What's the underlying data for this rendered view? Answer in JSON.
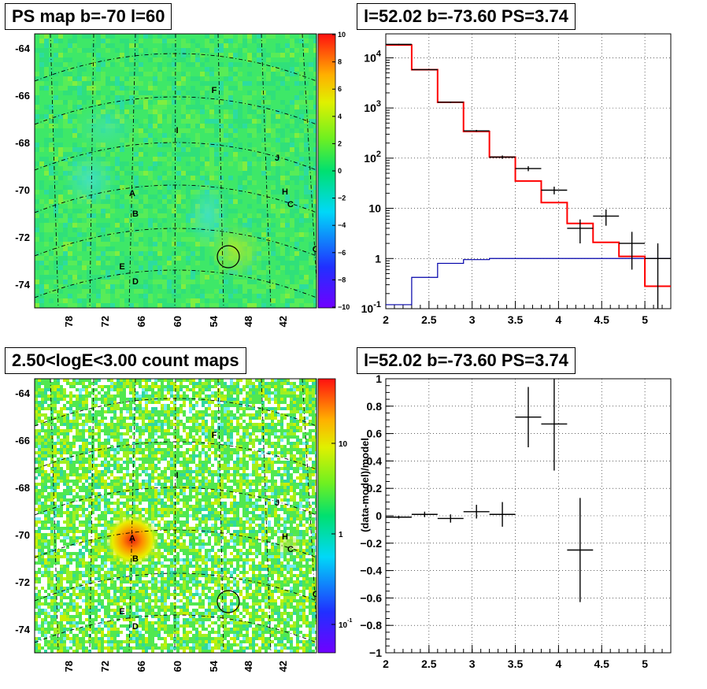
{
  "titles": {
    "tl": "PS map b=-70 l=60",
    "tr": "l=52.02 b=-73.60 PS=3.74",
    "bl": "2.50<logE<3.00 count maps",
    "br": "l=52.02 b=-73.60 PS=3.74"
  },
  "colors": {
    "data": "#000000",
    "model": "#ff0000",
    "background_model": "#0000aa"
  },
  "chart_data": [
    {
      "type": "heatmap",
      "title": "PS map b=-70 l=60",
      "xticks": [
        "78",
        "72",
        "66",
        "60",
        "54",
        "48",
        "42"
      ],
      "yticks": [
        "-64",
        "-66",
        "-68",
        "-70",
        "-72",
        "-74"
      ],
      "colorbar": {
        "min": -10,
        "max": 10,
        "ticks": [
          "10",
          "8",
          "6",
          "4",
          "2",
          "0",
          "−2",
          "−4",
          "−6",
          "−8",
          "−10"
        ]
      },
      "sources": [
        "F",
        "I",
        "J",
        "A",
        "H",
        "C",
        "B",
        "G",
        "E",
        "D"
      ],
      "circle": {
        "l": 52.02,
        "b": -73.6
      }
    },
    {
      "type": "line",
      "title": "l=52.02 b=-73.60 PS=3.74",
      "xlim": [
        2,
        5.3
      ],
      "ylim": [
        0.1,
        30000
      ],
      "log_y": true,
      "grid": true,
      "xticks": [
        "2",
        "2.5",
        "3",
        "3.5",
        "4",
        "4.5",
        "5"
      ],
      "yticks": [
        "10^4",
        "10^3",
        "10^2",
        "10",
        "1",
        "10^-1"
      ],
      "bin_edges": [
        2.0,
        2.3,
        2.6,
        2.9,
        3.2,
        3.5,
        3.8,
        4.1,
        4.4,
        4.7,
        5.0,
        5.3
      ],
      "series": [
        {
          "values": [
            18000,
            5800,
            1300,
            340,
            105,
            35,
            13,
            5,
            2.1,
            1.1,
            0.28
          ]
        },
        {
          "values": [
            0.12,
            0.42,
            0.8,
            0.95,
            1,
            1,
            1,
            1,
            1,
            1,
            1
          ]
        }
      ],
      "points": [
        {
          "x": 2.15,
          "y": 18500,
          "xerr": 0.15,
          "ylo": 18000,
          "yhi": 19000
        },
        {
          "x": 2.45,
          "y": 5800,
          "xerr": 0.15,
          "ylo": 5700,
          "yhi": 5900
        },
        {
          "x": 2.75,
          "y": 1300,
          "xerr": 0.15,
          "ylo": 1260,
          "yhi": 1340
        },
        {
          "x": 3.05,
          "y": 350,
          "xerr": 0.15,
          "ylo": 335,
          "yhi": 365
        },
        {
          "x": 3.35,
          "y": 105,
          "xerr": 0.15,
          "ylo": 97,
          "yhi": 113
        },
        {
          "x": 3.65,
          "y": 62,
          "xerr": 0.15,
          "ylo": 55,
          "yhi": 69
        },
        {
          "x": 3.95,
          "y": 23,
          "xerr": 0.15,
          "ylo": 19,
          "yhi": 27
        },
        {
          "x": 4.25,
          "y": 4,
          "xerr": 0.15,
          "ylo": 2,
          "yhi": 6
        },
        {
          "x": 4.55,
          "y": 7,
          "xerr": 0.15,
          "ylo": 4.5,
          "yhi": 9.5
        },
        {
          "x": 4.85,
          "y": 2,
          "xerr": 0.15,
          "ylo": 0.6,
          "yhi": 3.4
        },
        {
          "x": 5.15,
          "y": 1,
          "xerr": 0.15,
          "ylo": 0.1,
          "yhi": 2
        }
      ]
    },
    {
      "type": "heatmap",
      "title": "2.50<logE<3.00 count maps",
      "xticks": [
        "78",
        "72",
        "66",
        "60",
        "54",
        "48",
        "42"
      ],
      "yticks": [
        "-64",
        "-66",
        "-68",
        "-70",
        "-72",
        "-74"
      ],
      "log_z": true,
      "colorbar": {
        "ticks": [
          "10",
          "1",
          "10^-1"
        ]
      },
      "sources": [
        "F",
        "I",
        "J",
        "A",
        "H",
        "C",
        "B",
        "G",
        "E",
        "D"
      ],
      "circle": {
        "l": 52.02,
        "b": -73.6
      }
    },
    {
      "type": "scatter",
      "title": "l=52.02 b=-73.60 PS=3.74",
      "ylabel": "(data-model)/model",
      "xlim": [
        2,
        5.3
      ],
      "ylim": [
        -1,
        1
      ],
      "grid": true,
      "xticks": [
        "2",
        "2.5",
        "3",
        "3.5",
        "4",
        "4.5",
        "5"
      ],
      "yticks": [
        "1",
        "0.8",
        "0.6",
        "0.4",
        "0.2",
        "0",
        "-0.2",
        "-0.4",
        "-0.6",
        "-0.8",
        "-1"
      ],
      "points": [
        {
          "x": 2.15,
          "y": -0.01,
          "xerr": 0.15,
          "yerr": 0.01
        },
        {
          "x": 2.45,
          "y": 0.01,
          "xerr": 0.15,
          "yerr": 0.02
        },
        {
          "x": 2.75,
          "y": -0.02,
          "xerr": 0.15,
          "yerr": 0.03
        },
        {
          "x": 3.05,
          "y": 0.03,
          "xerr": 0.15,
          "yerr": 0.05
        },
        {
          "x": 3.35,
          "y": 0.01,
          "xerr": 0.15,
          "yerr": 0.09
        },
        {
          "x": 3.65,
          "y": 0.72,
          "xerr": 0.15,
          "yerr": 0.22
        },
        {
          "x": 3.95,
          "y": 0.67,
          "xerr": 0.15,
          "yerr": 0.34
        },
        {
          "x": 4.25,
          "y": -0.25,
          "xerr": 0.15,
          "yerr": 0.38
        }
      ]
    }
  ]
}
